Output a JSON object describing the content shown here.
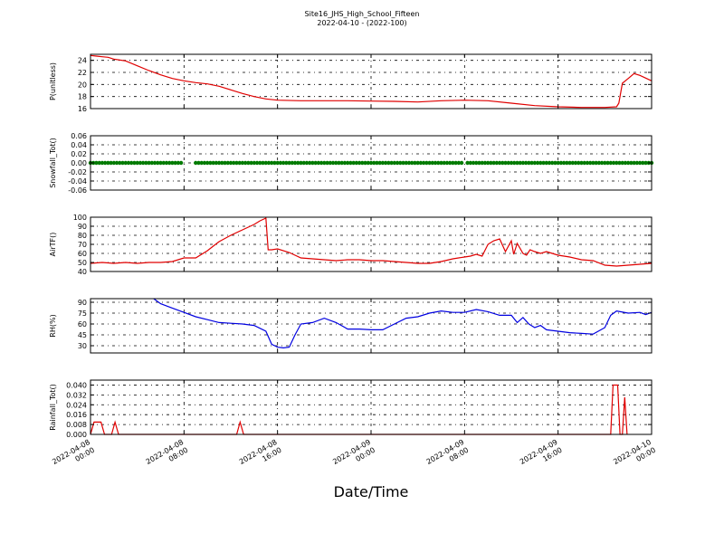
{
  "title": "Site16_JHS_High_School_Fifteen",
  "subtitle": "2022-04-10 - (2022-100)",
  "xlabel": "Date/Time",
  "x_ticks": [
    {
      "line1": "2022-04-08",
      "line2": "00:00"
    },
    {
      "line1": "2022-04-08",
      "line2": "08:00"
    },
    {
      "line1": "2022-04-08",
      "line2": "16:00"
    },
    {
      "line1": "2022-04-09",
      "line2": "00:00"
    },
    {
      "line1": "2022-04-09",
      "line2": "08:00"
    },
    {
      "line1": "2022-04-09",
      "line2": "16:00"
    },
    {
      "line1": "2022-04-10",
      "line2": "00:00"
    }
  ],
  "chart_data": [
    {
      "type": "line",
      "ylabel": "P(unitless)",
      "ylim": [
        16,
        25
      ],
      "yticks": [
        16,
        18,
        20,
        22,
        24
      ],
      "grid": true,
      "color": "#e00000",
      "x_hours": [
        0,
        0.5,
        1,
        1.5,
        2,
        3,
        4,
        5,
        6,
        7,
        8,
        9,
        10,
        11,
        12,
        13,
        14,
        15,
        16,
        18,
        20,
        22,
        24,
        26,
        28,
        30,
        32,
        34,
        36,
        38,
        40,
        42,
        44,
        45,
        45.2,
        45.5,
        46,
        46.5,
        47,
        48
      ],
      "values": [
        24.8,
        24.7,
        24.6,
        24.5,
        24.2,
        23.9,
        23.1,
        22.3,
        21.6,
        21.0,
        20.6,
        20.3,
        20.1,
        19.7,
        19.1,
        18.5,
        18.0,
        17.6,
        17.4,
        17.3,
        17.3,
        17.3,
        17.25,
        17.2,
        17.1,
        17.3,
        17.4,
        17.3,
        16.9,
        16.5,
        16.3,
        16.2,
        16.2,
        16.3,
        16.9,
        20.2,
        21.0,
        21.8,
        21.5,
        20.6
      ]
    },
    {
      "type": "scatter",
      "ylabel": "Snowfall_Tot()",
      "ylim": [
        -0.06,
        0.06
      ],
      "yticks": [
        -0.06,
        -0.04,
        -0.02,
        0.0,
        0.02,
        0.04,
        0.06
      ],
      "grid": true,
      "color": "#007a00",
      "constant_value": 0.0,
      "x_start_hours": 0,
      "x_end_hours": 48,
      "step_hours": 0.25
    },
    {
      "type": "line",
      "ylabel": "AirTF()",
      "ylim": [
        40,
        100
      ],
      "yticks": [
        40,
        50,
        60,
        70,
        80,
        90,
        100
      ],
      "grid": true,
      "color": "#e00000",
      "x_hours": [
        0,
        1,
        2,
        3,
        4,
        5,
        6,
        7,
        8,
        9,
        10,
        10.5,
        11,
        12,
        13,
        14,
        14.5,
        15,
        15.2,
        15.5,
        16,
        17,
        18,
        19,
        20,
        21,
        22,
        23,
        24,
        25,
        26,
        27,
        28,
        29,
        30,
        31,
        32,
        32.5,
        33,
        33.5,
        34,
        34.5,
        35,
        35.5,
        36,
        36.2,
        36.5,
        37,
        37.3,
        37.6,
        38,
        38.5,
        39,
        39.5,
        40,
        41,
        42,
        43,
        44,
        45,
        46,
        47,
        48
      ],
      "values": [
        49,
        50,
        49,
        50,
        49,
        50,
        50,
        51,
        55,
        55,
        63,
        68,
        73,
        80,
        86,
        92,
        96,
        99,
        64,
        64,
        65,
        61,
        55,
        54,
        53,
        52,
        53,
        53,
        52,
        52,
        51,
        50,
        49,
        49,
        51,
        54,
        56,
        57,
        59,
        57,
        70,
        74,
        76,
        62,
        74,
        59,
        71,
        60,
        58,
        64,
        62,
        60,
        62,
        60,
        58,
        56,
        53,
        52,
        47,
        46,
        47,
        48,
        49
      ]
    },
    {
      "type": "line",
      "ylabel": "RH(%)",
      "ylim": [
        20,
        95
      ],
      "yticks": [
        30,
        45,
        60,
        75,
        90
      ],
      "grid": true,
      "color": "#0000e0",
      "x_hours": [
        5.4,
        6,
        7,
        8,
        9,
        10,
        11,
        12,
        13,
        14,
        15,
        15.5,
        16,
        16.5,
        17,
        17.5,
        18,
        19,
        20,
        21,
        22,
        23,
        24,
        25,
        26,
        27,
        28,
        29,
        30,
        31,
        32,
        33,
        34,
        35,
        36,
        36.5,
        37,
        37.5,
        38,
        38.5,
        39,
        40,
        41,
        42,
        43,
        44,
        44.5,
        45,
        46,
        47,
        47.5,
        48
      ],
      "values": [
        95,
        88,
        82,
        76,
        70,
        66,
        62,
        61,
        60,
        58,
        50,
        32,
        28,
        27,
        28,
        45,
        60,
        62,
        68,
        62,
        53,
        53,
        52,
        52,
        60,
        68,
        70,
        75,
        78,
        76,
        76,
        80,
        77,
        72,
        72,
        62,
        69,
        60,
        55,
        58,
        52,
        50,
        48,
        47,
        46,
        55,
        72,
        78,
        75,
        76,
        73,
        76
      ]
    },
    {
      "type": "line",
      "ylabel": "Rainfall_Tot()",
      "ylim": [
        0,
        0.044
      ],
      "yticks": [
        0.0,
        0.008,
        0.016,
        0.024,
        0.032,
        0.04
      ],
      "grid": true,
      "color": "#e00000",
      "x_hours": [
        0,
        0.3,
        0.6,
        0.9,
        1.2,
        1.5,
        1.8,
        2.1,
        2.4,
        2.7,
        12.5,
        12.8,
        13.1,
        44.5,
        44.7,
        44.9,
        45.1,
        45.3,
        45.5,
        45.7,
        45.9
      ],
      "values": [
        0.0,
        0.01,
        0.01,
        0.01,
        0.0,
        0.0,
        0.0,
        0.01,
        0.0,
        0.0,
        0.0,
        0.01,
        0.0,
        0.0,
        0.04,
        0.04,
        0.04,
        0.0,
        0.0,
        0.03,
        0.0
      ]
    }
  ]
}
